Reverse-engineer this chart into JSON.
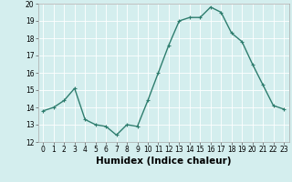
{
  "x": [
    0,
    1,
    2,
    3,
    4,
    5,
    6,
    7,
    8,
    9,
    10,
    11,
    12,
    13,
    14,
    15,
    16,
    17,
    18,
    19,
    20,
    21,
    22,
    23
  ],
  "y": [
    13.8,
    14.0,
    14.4,
    15.1,
    13.3,
    13.0,
    12.9,
    12.4,
    13.0,
    12.9,
    14.4,
    16.0,
    17.6,
    19.0,
    19.2,
    19.2,
    19.8,
    19.5,
    18.3,
    17.8,
    16.5,
    15.3,
    14.1,
    13.9
  ],
  "line_color": "#2e7d6e",
  "marker": "+",
  "marker_size": 3,
  "line_width": 1.0,
  "bg_color": "#d4eeee",
  "grid_color": "#ffffff",
  "xlabel": "Humidex (Indice chaleur)",
  "ylim": [
    12,
    20
  ],
  "xlim": [
    -0.5,
    23.5
  ],
  "yticks": [
    12,
    13,
    14,
    15,
    16,
    17,
    18,
    19,
    20
  ],
  "xticks": [
    0,
    1,
    2,
    3,
    4,
    5,
    6,
    7,
    8,
    9,
    10,
    11,
    12,
    13,
    14,
    15,
    16,
    17,
    18,
    19,
    20,
    21,
    22,
    23
  ],
  "tick_label_fontsize": 5.5,
  "xlabel_fontsize": 7.5
}
